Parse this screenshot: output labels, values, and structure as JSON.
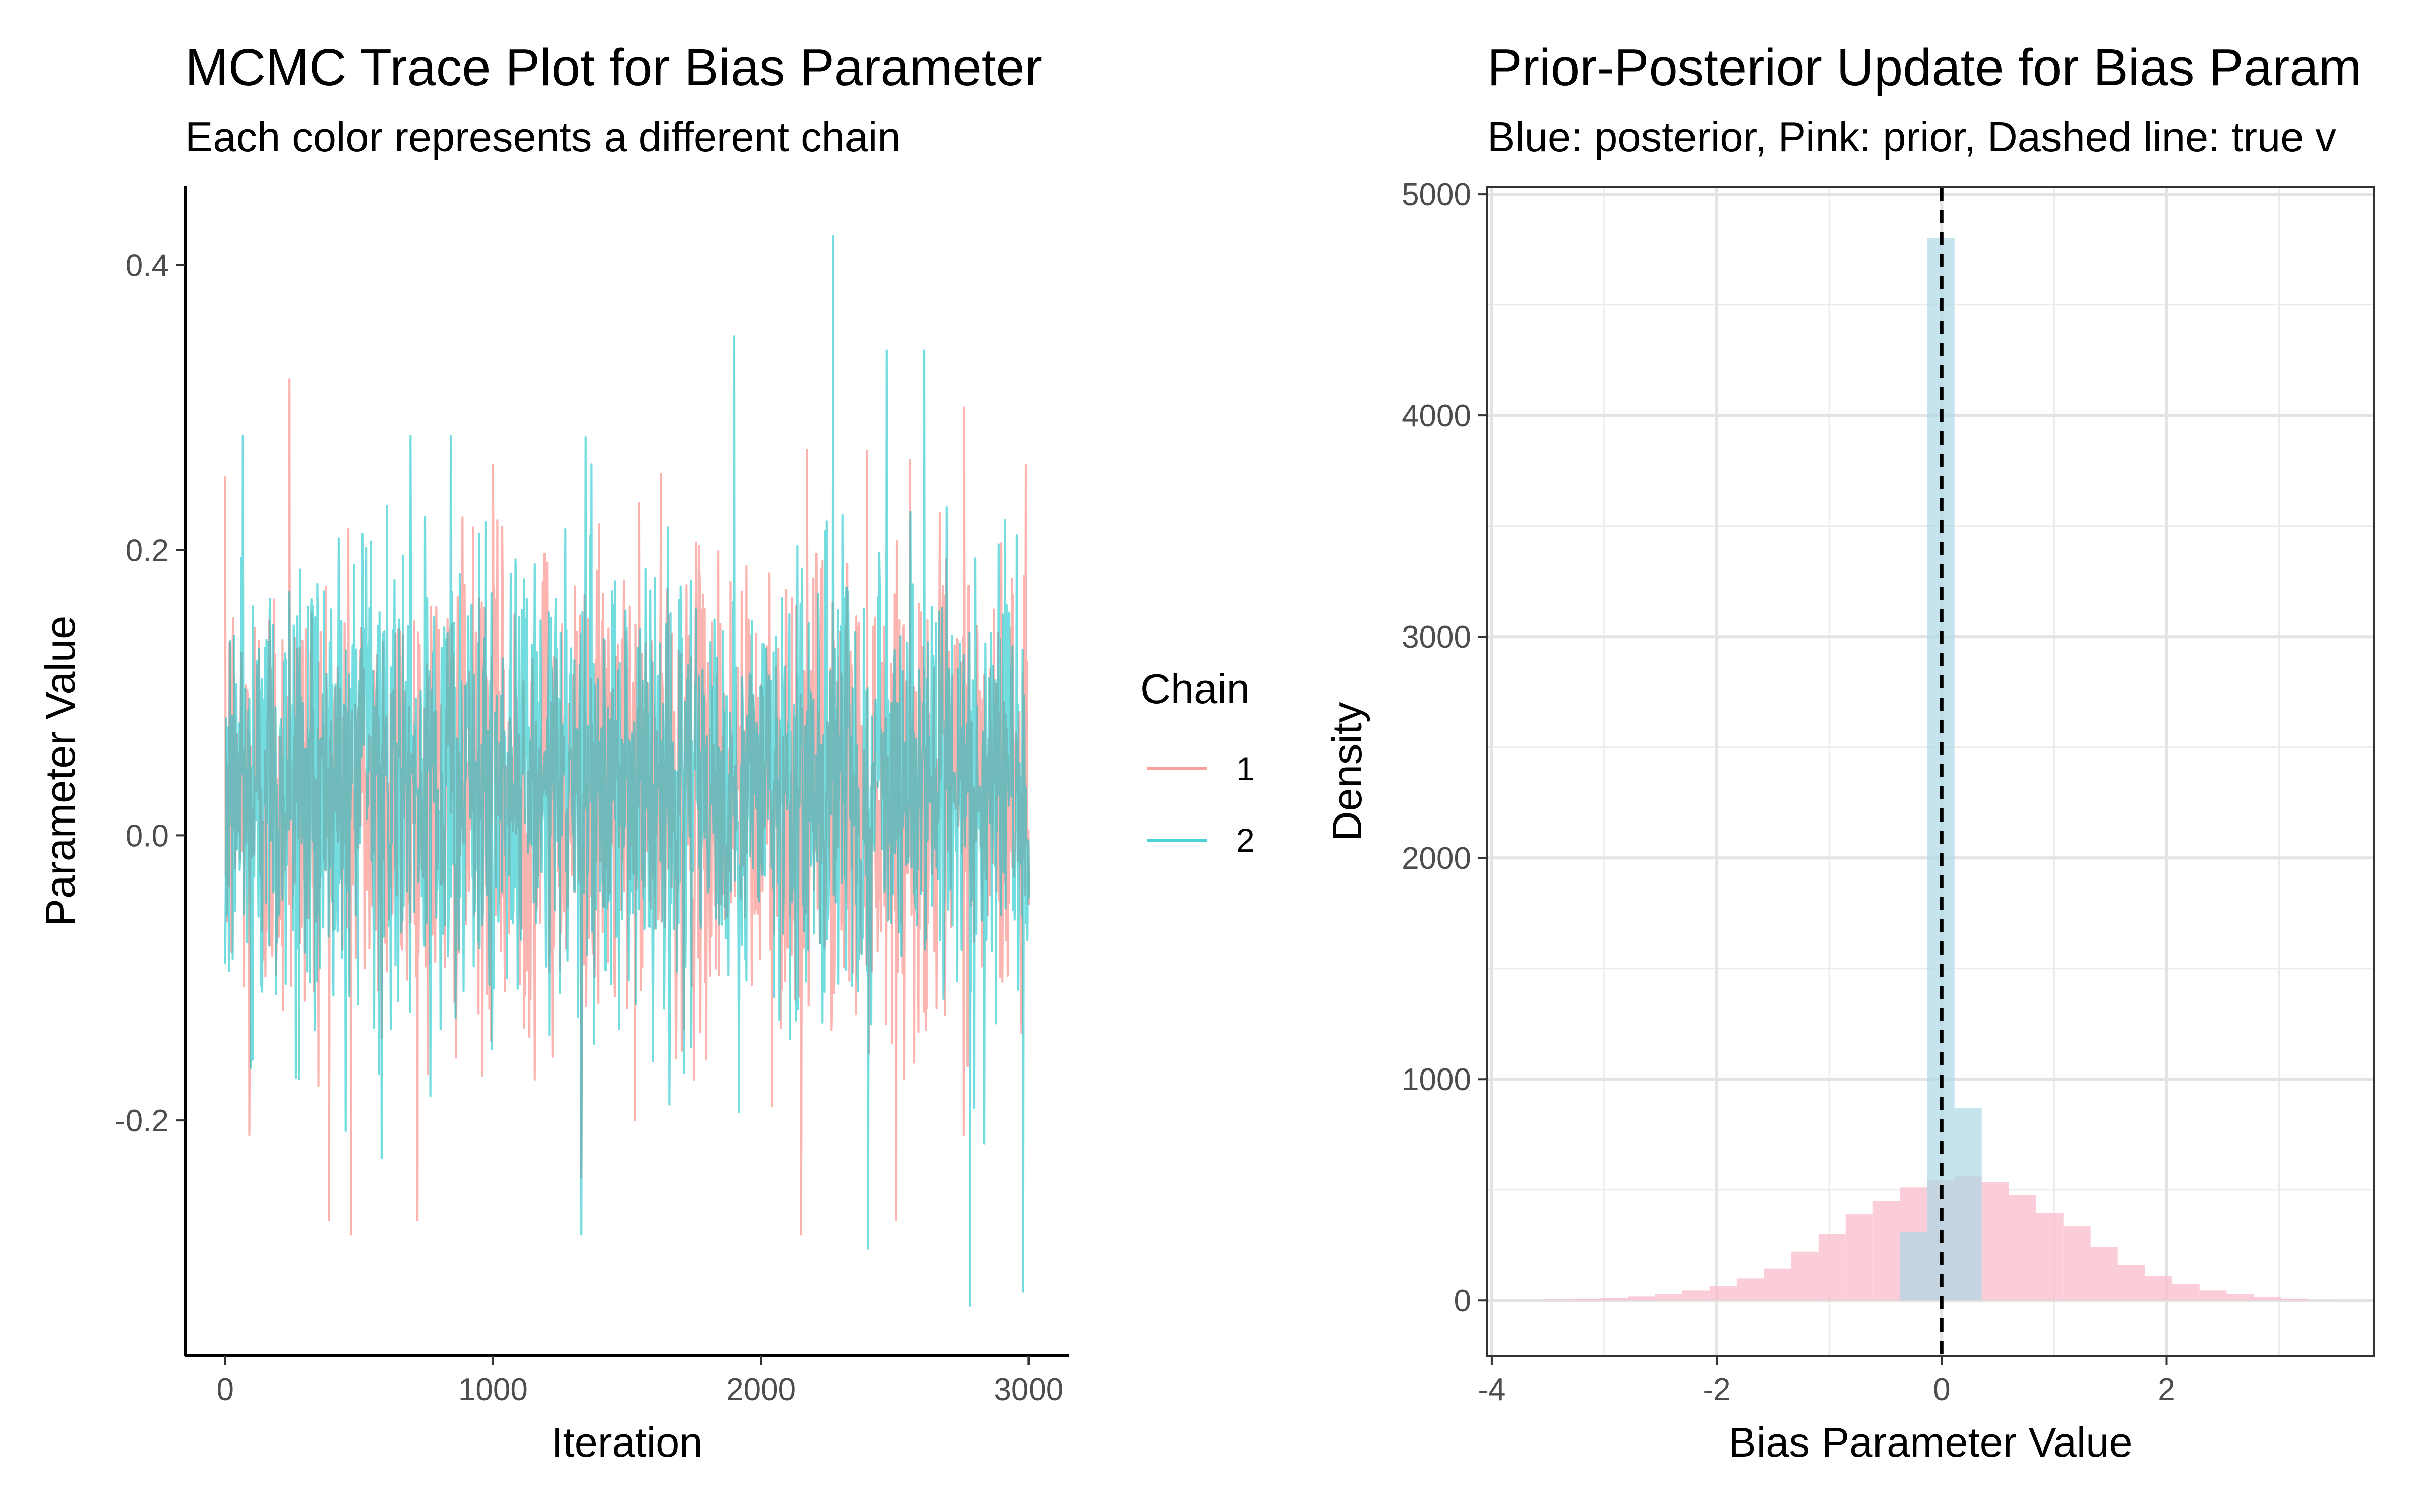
{
  "chart_data": [
    {
      "type": "line",
      "title": "MCMC Trace Plot for Bias Parameter",
      "subtitle": "Each color represents a different chain",
      "xlabel": "Iteration",
      "ylabel": "Parameter Value",
      "xlim": [
        -150,
        3150
      ],
      "ylim": [
        -0.365,
        0.455
      ],
      "x_ticks": [
        0,
        1000,
        2000,
        3000
      ],
      "x_tick_labels": [
        "0",
        "1000",
        "2000",
        "3000"
      ],
      "y_ticks": [
        -0.2,
        0.0,
        0.2,
        0.4
      ],
      "y_tick_labels": [
        "-0.2",
        "0.0",
        "0.2",
        "0.4"
      ],
      "grid": false,
      "legend": {
        "title": "Chain",
        "placement": "right"
      },
      "series": [
        {
          "name": "1",
          "color": "#F8766D",
          "iterations": [
            0,
            3000
          ],
          "mean": 0.03,
          "sd": 0.08,
          "peaks": [
            [
              240,
              0.32
            ],
            [
              2760,
              0.3
            ],
            [
              2990,
              0.26
            ],
            [
              1000,
              0.26
            ]
          ],
          "troughs": [
            [
              470,
              -0.28
            ],
            [
              2150,
              -0.28
            ],
            [
              1330,
              -0.24
            ],
            [
              90,
              -0.21
            ]
          ]
        },
        {
          "name": "2",
          "color": "#00BFC4",
          "iterations": [
            0,
            3000
          ],
          "mean": 0.03,
          "sd": 0.08,
          "peaks": [
            [
              2270,
              0.42
            ],
            [
              1900,
              0.35
            ],
            [
              2610,
              0.34
            ],
            [
              2470,
              0.34
            ]
          ],
          "troughs": [
            [
              2780,
              -0.33
            ],
            [
              2980,
              -0.32
            ],
            [
              1330,
              -0.28
            ],
            [
              2400,
              -0.29
            ]
          ]
        }
      ]
    },
    {
      "type": "bar",
      "title": "Prior-Posterior Update for Bias Param",
      "subtitle": "Blue: posterior, Pink: prior, Dashed line: true v",
      "xlabel": "Bias Parameter Value",
      "ylabel": "Density",
      "xlim": [
        -4.04,
        3.84
      ],
      "ylim": [
        -250,
        5030
      ],
      "x_ticks": [
        -4,
        -2,
        0,
        2
      ],
      "x_tick_labels": [
        "-4",
        "-2",
        "0",
        "2"
      ],
      "y_ticks": [
        0,
        1000,
        2000,
        3000,
        4000,
        5000
      ],
      "y_tick_labels": [
        "0",
        "1000",
        "2000",
        "3000",
        "4000",
        "5000"
      ],
      "grid": true,
      "reference_line": {
        "x": 0,
        "style": "dashed",
        "color": "#000000"
      },
      "bin_width": 0.242,
      "series": [
        {
          "name": "prior",
          "color": "#F9BCCB",
          "bin_starts": [
            -4.0,
            -3.758,
            -3.516,
            -3.274,
            -3.032,
            -2.79,
            -2.548,
            -2.306,
            -2.064,
            -1.822,
            -1.58,
            -1.338,
            -1.096,
            -0.854,
            -0.612,
            -0.37,
            -0.128,
            0.114,
            0.356,
            0.598,
            0.84,
            1.082,
            1.324,
            1.566,
            1.808,
            2.05,
            2.292,
            2.534,
            2.776,
            3.018,
            3.26
          ],
          "values": [
            2,
            3,
            5,
            8,
            12,
            18,
            28,
            45,
            65,
            100,
            145,
            220,
            300,
            390,
            450,
            510,
            545,
            560,
            535,
            475,
            395,
            335,
            240,
            160,
            110,
            75,
            45,
            30,
            15,
            8,
            3
          ]
        },
        {
          "name": "posterior",
          "color": "#ADD8E6",
          "bin_starts": [
            -0.37,
            -0.128,
            0.114
          ],
          "values": [
            310,
            4800,
            870
          ]
        }
      ]
    }
  ]
}
